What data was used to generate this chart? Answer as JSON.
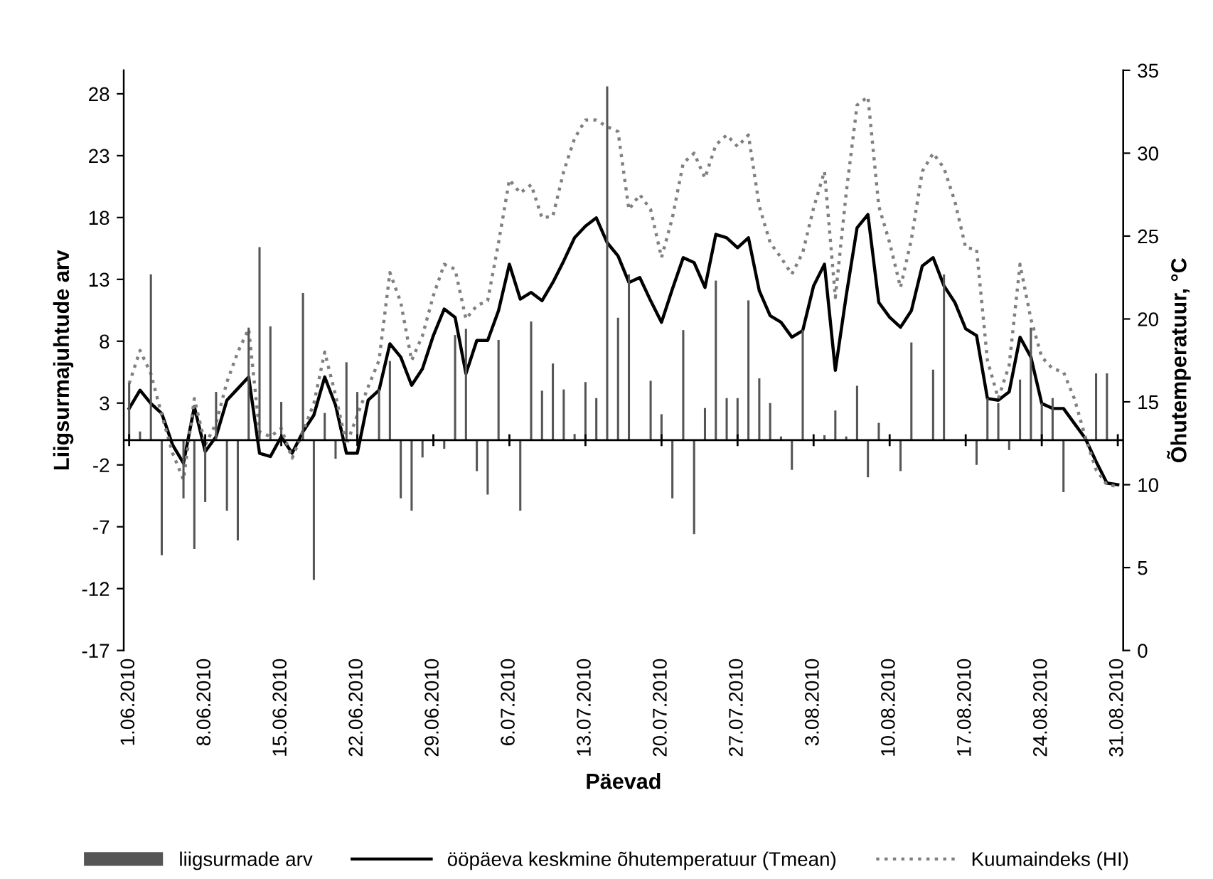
{
  "chart_data": {
    "type": "bar",
    "xlabel": "Päevad",
    "ylabel": "Liigsurmajuhtude arv",
    "y2label": "Õhutemperatuur, °C",
    "categories": [
      "1.06.2010",
      null,
      null,
      null,
      null,
      null,
      null,
      "8.06.2010",
      null,
      null,
      null,
      null,
      null,
      null,
      "15.06.2010",
      null,
      null,
      null,
      null,
      null,
      null,
      "22.06.2010",
      null,
      null,
      null,
      null,
      null,
      null,
      "29.06.2010",
      null,
      null,
      null,
      null,
      null,
      null,
      "6.07.2010",
      null,
      null,
      null,
      null,
      null,
      null,
      "13.07.2010",
      null,
      null,
      null,
      null,
      null,
      null,
      "20.07.2010",
      null,
      null,
      null,
      null,
      null,
      null,
      "27.07.2010",
      null,
      null,
      null,
      null,
      null,
      null,
      "3.08.2010",
      null,
      null,
      null,
      null,
      null,
      null,
      "10.08.2010",
      null,
      null,
      null,
      null,
      null,
      null,
      "17.08.2010",
      null,
      null,
      null,
      null,
      null,
      null,
      "24.08.2010",
      null,
      null,
      null,
      null,
      null,
      null,
      "31.08.2010"
    ],
    "series": [
      {
        "name": "liigsurmade arv",
        "color": "#555555",
        "values": [
          4.6,
          0.7,
          13.4,
          -9.3,
          0,
          -4.7,
          -8.8,
          -5.0,
          3.9,
          -5.7,
          -8.1,
          9.1,
          15.6,
          9.2,
          3.1,
          0,
          11.9,
          -11.3,
          2.2,
          -1.5,
          6.3,
          3.9,
          0,
          4.1,
          6.4,
          -4.7,
          -5.7,
          -1.4,
          null,
          -0.7,
          8.5,
          9.0,
          -2.5,
          -4.4,
          8.1,
          0,
          -5.7,
          9.6,
          4.0,
          6.2,
          4.1,
          0.5,
          4.7,
          3.4,
          28.6,
          9.9,
          13.4,
          0,
          4.8,
          2.1,
          -4.7,
          8.9,
          -7.6,
          2.6,
          12.9,
          3.4,
          3.4,
          11.3,
          5.0,
          3.0,
          0.3,
          -2.4,
          8.9,
          0,
          0.4,
          2.4,
          0.3,
          4.4,
          -3.0,
          1.4,
          0,
          -2.5,
          7.9,
          0,
          5.7,
          13.4,
          0,
          null,
          -2.0,
          3.4,
          3.0,
          -0.8,
          4.9,
          9.1,
          3.0,
          3.4,
          -4.2,
          0,
          0,
          5.4,
          5.4,
          null
        ]
      },
      {
        "name": "ööpäeva keskmine õhutemperatuur (Tmean)",
        "type": "line",
        "axis": "y2",
        "color": "#000000",
        "line_style": "solid",
        "values": [
          14.6,
          15.7,
          14.9,
          14.3,
          12.4,
          11.3,
          14.7,
          12.0,
          12.9,
          15.1,
          15.8,
          16.5,
          11.9,
          11.7,
          12.9,
          11.9,
          13.2,
          14.2,
          16.5,
          14.8,
          11.9,
          11.9,
          15.1,
          15.7,
          18.5,
          17.7,
          16.0,
          17.0,
          19.0,
          20.6,
          20.1,
          16.7,
          18.7,
          18.7,
          20.5,
          23.3,
          21.2,
          21.6,
          21.1,
          22.2,
          23.5,
          24.9,
          25.6,
          26.1,
          24.6,
          23.8,
          22.2,
          22.5,
          21.1,
          19.8,
          21.8,
          23.7,
          23.4,
          21.9,
          25.1,
          24.9,
          24.3,
          24.9,
          21.7,
          20.2,
          19.8,
          18.9,
          19.3,
          22.0,
          23.3,
          16.9,
          21.4,
          25.5,
          26.3,
          21.0,
          20.1,
          19.5,
          20.5,
          23.2,
          23.7,
          22.0,
          21.0,
          19.4,
          19.0,
          15.2,
          15.1,
          15.6,
          18.9,
          17.7,
          14.9,
          14.6,
          14.6,
          13.7,
          12.8,
          11.4,
          10.1,
          10.0
        ]
      },
      {
        "name": "Kuumaindeks (HI)",
        "type": "line",
        "axis": "y2",
        "color": "#808080",
        "line_style": "dotted",
        "values": [
          16.1,
          18.1,
          16.7,
          14.2,
          11.9,
          10.3,
          15.2,
          12.4,
          13.7,
          16.2,
          18.0,
          19.4,
          13.2,
          12.9,
          13.4,
          11.6,
          13.2,
          14.9,
          18.0,
          15.4,
          12.4,
          14.2,
          15.9,
          17.5,
          22.8,
          21.0,
          17.5,
          19.0,
          21.4,
          23.3,
          23.0,
          20.0,
          20.8,
          21.1,
          24.6,
          28.4,
          27.6,
          28.1,
          26.1,
          26.2,
          28.9,
          30.9,
          32.0,
          32.0,
          31.6,
          31.3,
          26.6,
          27.5,
          26.6,
          23.7,
          26.1,
          29.4,
          30.0,
          28.5,
          30.5,
          31.1,
          30.4,
          31.1,
          26.8,
          24.6,
          23.7,
          22.7,
          24.0,
          26.7,
          28.9,
          21.3,
          27.6,
          32.9,
          33.4,
          26.8,
          24.6,
          21.9,
          24.8,
          28.9,
          30.0,
          29.1,
          27.1,
          24.3,
          24.2,
          17.5,
          15.2,
          17.2,
          23.3,
          20.0,
          17.7,
          17.0,
          16.8,
          15.2,
          12.9,
          10.9,
          10.0,
          9.9
        ]
      }
    ],
    "ylim": [
      -17,
      29.9
    ],
    "yticks": [
      -17,
      -12,
      -7,
      -2,
      3,
      8,
      13,
      18,
      23,
      28
    ],
    "y2lim": [
      0,
      35
    ],
    "y2ticks": [
      0,
      5,
      10,
      15,
      20,
      25,
      30,
      35
    ],
    "grid": false,
    "legend": "bottom",
    "marker": "none"
  }
}
